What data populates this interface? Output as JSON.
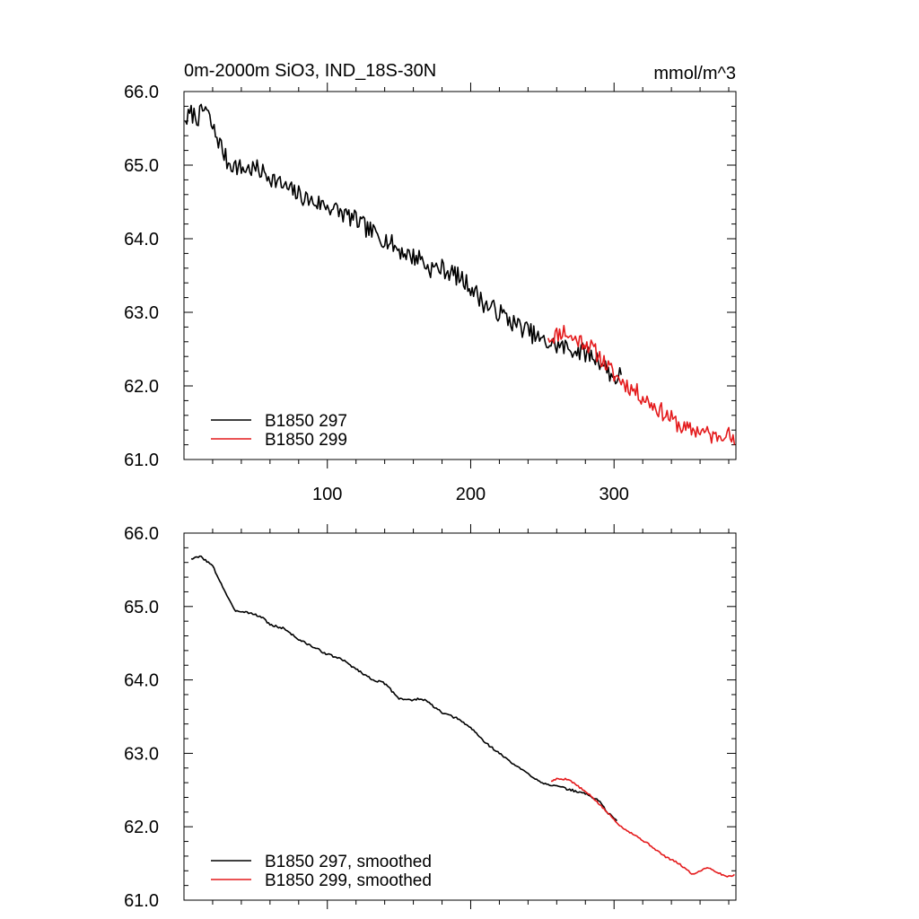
{
  "header": {
    "title": "0m-2000m SiO3, IND_18S-30N",
    "units": "mmol/m^3"
  },
  "colors": {
    "series_297": "#000000",
    "series_299": "#e41a1c",
    "axis": "#000000"
  },
  "chart_data": [
    {
      "type": "line",
      "title": "0m-2000m SiO3, IND_18S-30N",
      "units": "mmol/m^3",
      "xlim": [
        0,
        385
      ],
      "ylim": [
        61.0,
        66.0
      ],
      "xticks": [
        100,
        200,
        300
      ],
      "xtick_labels": [
        "100",
        "200",
        "300"
      ],
      "yticks": [
        61.0,
        62.0,
        63.0,
        64.0,
        65.0,
        66.0
      ],
      "ytick_labels": [
        "61.0",
        "62.0",
        "63.0",
        "64.0",
        "65.0",
        "66.0"
      ],
      "legend_position": "bottom-left",
      "series": [
        {
          "name": "B1850 297",
          "color_key": "series_297",
          "anchors": [
            [
              1,
              65.6
            ],
            [
              5,
              65.7
            ],
            [
              10,
              65.65
            ],
            [
              15,
              65.78
            ],
            [
              20,
              65.5
            ],
            [
              25,
              65.3
            ],
            [
              30,
              65.05
            ],
            [
              40,
              64.95
            ],
            [
              50,
              64.95
            ],
            [
              60,
              64.85
            ],
            [
              70,
              64.7
            ],
            [
              80,
              64.6
            ],
            [
              90,
              64.5
            ],
            [
              100,
              64.45
            ],
            [
              110,
              64.35
            ],
            [
              120,
              64.25
            ],
            [
              130,
              64.1
            ],
            [
              140,
              64.0
            ],
            [
              150,
              63.85
            ],
            [
              160,
              63.75
            ],
            [
              165,
              63.75
            ],
            [
              170,
              63.6
            ],
            [
              180,
              63.6
            ],
            [
              190,
              63.5
            ],
            [
              200,
              63.35
            ],
            [
              210,
              63.1
            ],
            [
              220,
              63.0
            ],
            [
              230,
              62.85
            ],
            [
              240,
              62.75
            ],
            [
              250,
              62.6
            ],
            [
              260,
              62.55
            ],
            [
              270,
              62.5
            ],
            [
              280,
              62.45
            ],
            [
              290,
              62.35
            ],
            [
              300,
              62.1
            ],
            [
              305,
              62.15
            ]
          ],
          "noise": 0.13,
          "seed": 7
        },
        {
          "name": "B1850 299",
          "color_key": "series_299",
          "anchors": [
            [
              254,
              62.65
            ],
            [
              260,
              62.7
            ],
            [
              265,
              62.75
            ],
            [
              270,
              62.65
            ],
            [
              280,
              62.6
            ],
            [
              290,
              62.4
            ],
            [
              300,
              62.15
            ],
            [
              310,
              62.0
            ],
            [
              320,
              61.85
            ],
            [
              330,
              61.7
            ],
            [
              340,
              61.55
            ],
            [
              350,
              61.4
            ],
            [
              360,
              61.4
            ],
            [
              370,
              61.3
            ],
            [
              378,
              61.4
            ],
            [
              384,
              61.2
            ]
          ],
          "noise": 0.12,
          "seed": 11
        }
      ]
    },
    {
      "type": "line",
      "title": "",
      "xlim": [
        0,
        385
      ],
      "ylim": [
        61.0,
        66.0
      ],
      "xticks": [
        100,
        200,
        300
      ],
      "yticks": [
        61.0,
        62.0,
        63.0,
        64.0,
        65.0,
        66.0
      ],
      "ytick_labels": [
        "61.0",
        "62.0",
        "63.0",
        "64.0",
        "65.0",
        "66.0"
      ],
      "legend_position": "bottom-left",
      "series": [
        {
          "name": "B1850 297, smoothed",
          "color_key": "series_297",
          "anchors": [
            [
              5,
              65.65
            ],
            [
              12,
              65.68
            ],
            [
              20,
              65.55
            ],
            [
              25,
              65.35
            ],
            [
              35,
              64.95
            ],
            [
              45,
              64.92
            ],
            [
              55,
              64.85
            ],
            [
              60,
              64.75
            ],
            [
              70,
              64.7
            ],
            [
              80,
              64.55
            ],
            [
              90,
              64.45
            ],
            [
              100,
              64.35
            ],
            [
              110,
              64.28
            ],
            [
              120,
              64.15
            ],
            [
              130,
              64.02
            ],
            [
              140,
              63.95
            ],
            [
              150,
              63.75
            ],
            [
              160,
              63.72
            ],
            [
              165,
              63.75
            ],
            [
              170,
              63.7
            ],
            [
              180,
              63.55
            ],
            [
              190,
              63.48
            ],
            [
              200,
              63.35
            ],
            [
              210,
              63.15
            ],
            [
              220,
              63.0
            ],
            [
              230,
              62.85
            ],
            [
              240,
              62.72
            ],
            [
              250,
              62.6
            ],
            [
              260,
              62.55
            ],
            [
              270,
              62.5
            ],
            [
              280,
              62.45
            ],
            [
              290,
              62.35
            ],
            [
              295,
              62.2
            ],
            [
              302,
              62.08
            ]
          ],
          "noise": 0.015,
          "seed": 3
        },
        {
          "name": "B1850 299, smoothed",
          "color_key": "series_299",
          "anchors": [
            [
              256,
              62.62
            ],
            [
              260,
              62.65
            ],
            [
              268,
              62.65
            ],
            [
              275,
              62.55
            ],
            [
              285,
              62.4
            ],
            [
              295,
              62.2
            ],
            [
              305,
              62.0
            ],
            [
              315,
              61.88
            ],
            [
              325,
              61.75
            ],
            [
              335,
              61.6
            ],
            [
              345,
              61.5
            ],
            [
              355,
              61.35
            ],
            [
              365,
              61.45
            ],
            [
              375,
              61.35
            ],
            [
              380,
              61.32
            ],
            [
              384,
              61.35
            ]
          ],
          "noise": 0.012,
          "seed": 5
        }
      ]
    }
  ]
}
